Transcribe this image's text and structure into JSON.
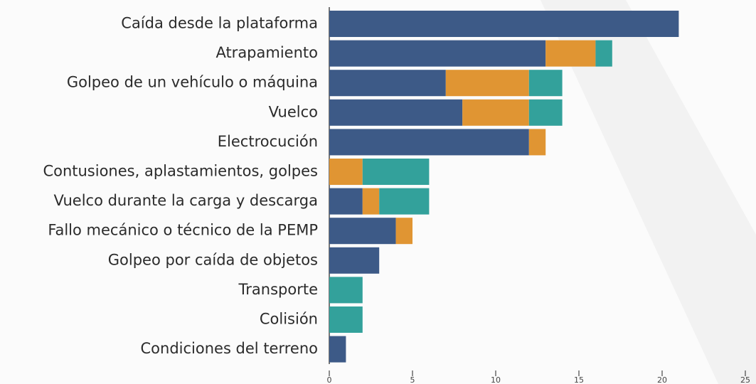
{
  "chart_data": {
    "type": "stacked-bar-horizontal",
    "categories": [
      "Caída desde la plataforma",
      "Atrapamiento",
      "Golpeo de un vehículo o máquina",
      "Vuelco",
      "Electrocución",
      "Contusiones, aplastamientos, golpes",
      "Vuelco durante la carga y descarga",
      "Fallo mecánico o técnico de la PEMP",
      "Golpeo por caída de objetos",
      "Transporte",
      "Colisión",
      "Condiciones del terreno"
    ],
    "series": [
      {
        "color": "#3d5a87",
        "values": [
          21,
          13,
          7,
          8,
          12,
          0,
          2,
          4,
          3,
          0,
          0,
          1
        ]
      },
      {
        "color": "#e09533",
        "values": [
          0,
          3,
          5,
          4,
          1,
          2,
          1,
          1,
          0,
          0,
          0,
          0
        ]
      },
      {
        "color": "#33a19b",
        "values": [
          0,
          1,
          2,
          2,
          0,
          4,
          3,
          0,
          0,
          2,
          2,
          0
        ]
      }
    ],
    "xlim": [
      0,
      25
    ],
    "xticks": [
      0,
      5,
      10,
      15,
      20,
      25
    ]
  }
}
